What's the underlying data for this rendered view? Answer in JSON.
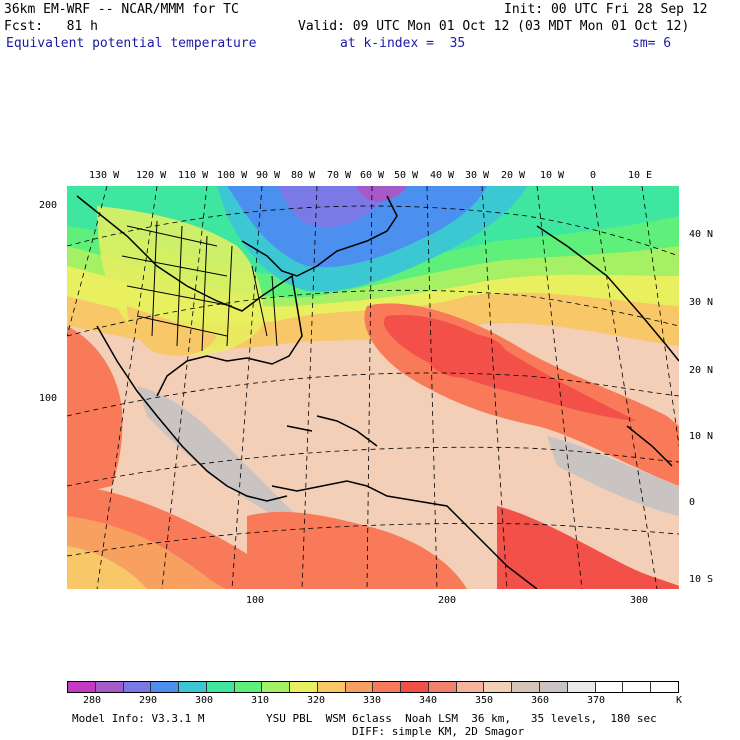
{
  "header": {
    "model": "36km EM-WRF -- NCAR/MMM for TC",
    "init": "Init: 00 UTC Fri 28 Sep 12",
    "fcst": "Fcst:   81 h",
    "valid": "Valid: 09 UTC Mon 01 Oct 12 (03 MDT Mon 01 Oct 12)",
    "field": "Equivalent potential temperature",
    "kindex": "at k-index =  35",
    "sm": "sm= 6"
  },
  "axes": {
    "top_lon": [
      "130 W",
      "120 W",
      "110 W",
      "100 W",
      "90 W",
      "80 W",
      "70 W",
      "60 W",
      "50 W",
      "40 W",
      "30 W",
      "20 W",
      "10 W",
      "0",
      "10 E"
    ],
    "right_lat": [
      "40 N",
      "30 N",
      "20 N",
      "10 N",
      "0",
      "10 S"
    ],
    "left_grid": [
      "200",
      "100"
    ],
    "bottom_grid": [
      "100",
      "200",
      "300"
    ]
  },
  "colorbar": {
    "labels": [
      "280",
      "290",
      "300",
      "310",
      "320",
      "330",
      "340",
      "350",
      "360",
      "370",
      "K"
    ],
    "colors": [
      "#c33bc3",
      "#a65ac8",
      "#7b79e6",
      "#4b8fef",
      "#3cc8d2",
      "#3fe6a0",
      "#5ef07a",
      "#a5f064",
      "#e8f060",
      "#f8c868",
      "#f8a060",
      "#f87a58",
      "#f25048",
      "#f2806e",
      "#f7b49b",
      "#f3cfb8",
      "#d6c4b8",
      "#c9c3c2",
      "#ebe9e9",
      "#ffffff",
      "#ffffff",
      "#ffffff"
    ],
    "warm_core": "#f25048",
    "cold_core": "#4b8fef"
  },
  "footer": {
    "model_info": "Model Info: V3.3.1 M",
    "physics": "YSU PBL  WSM 6class  Noah LSM  36 km,   35 levels,  180 sec",
    "diff": "DIFF: simple KM, 2D Smagor"
  }
}
